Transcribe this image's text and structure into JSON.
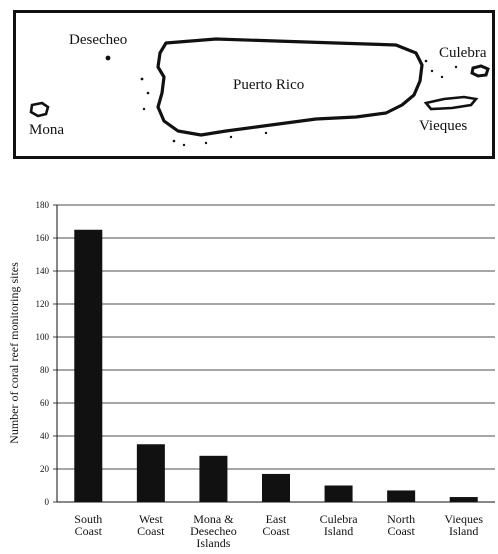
{
  "map": {
    "labels": {
      "desecheo": "Desecheo",
      "puerto_rico": "Puerto Rico",
      "culebra": "Culebra",
      "mona": "Mona",
      "vieques": "Vieques"
    },
    "outline_color": "#111111"
  },
  "chart_data": {
    "type": "bar",
    "categories": [
      [
        "South",
        "Coast"
      ],
      [
        "West",
        "Coast"
      ],
      [
        "Mona &",
        "Desecheo",
        "Islands"
      ],
      [
        "East",
        "Coast"
      ],
      [
        "Culebra",
        "Island"
      ],
      [
        "North",
        "Coast"
      ],
      [
        "Vieques",
        "Island"
      ]
    ],
    "values": [
      165,
      35,
      28,
      17,
      10,
      7,
      3
    ],
    "ylabel": "Number of coral reef monitoring sites",
    "xlabel": "",
    "ylim": [
      0,
      180
    ],
    "yticks": [
      0,
      20,
      40,
      60,
      80,
      100,
      120,
      140,
      160,
      180
    ],
    "grid": true,
    "bar_color": "#111111"
  }
}
